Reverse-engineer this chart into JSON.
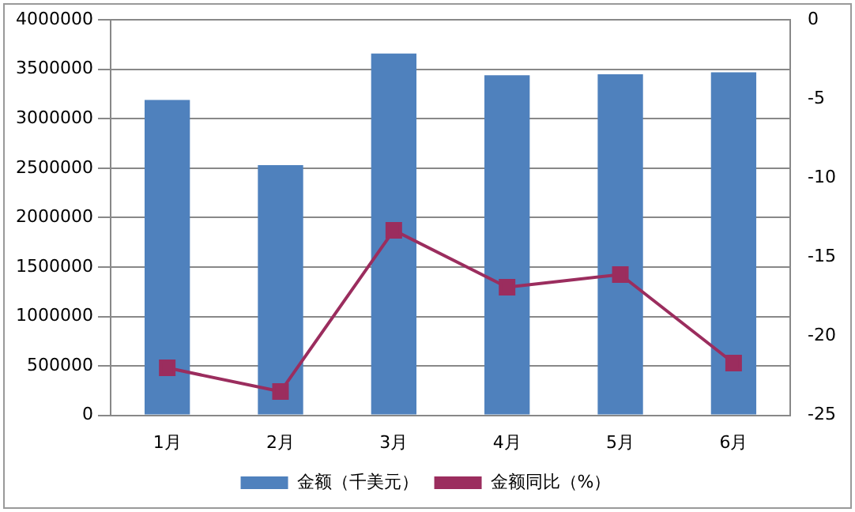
{
  "chart_data": {
    "type": "bar",
    "categories": [
      "1月",
      "2月",
      "3月",
      "4月",
      "5月",
      "6月"
    ],
    "series": [
      {
        "name": "金额（千美元）",
        "color": "#4f81bd",
        "values": [
          3190000,
          2530000,
          3660000,
          3440000,
          3450000,
          3470000
        ]
      },
      {
        "name": "金额同比（%）",
        "type": "line",
        "axis": "y2",
        "color": "#9b2d5e",
        "marker": "square",
        "values": [
          -22.0,
          -23.5,
          -13.3,
          -16.9,
          -16.1,
          -21.7
        ]
      }
    ],
    "ylim": [
      0,
      4000000
    ],
    "yticks": [
      0,
      500000,
      1000000,
      1500000,
      2000000,
      2500000,
      3000000,
      3500000,
      4000000
    ],
    "y2lim": [
      -25,
      0
    ],
    "y2ticks": [
      -25,
      -20,
      -15,
      -10,
      -5,
      0
    ],
    "grid": "y",
    "legend": "bottom"
  }
}
